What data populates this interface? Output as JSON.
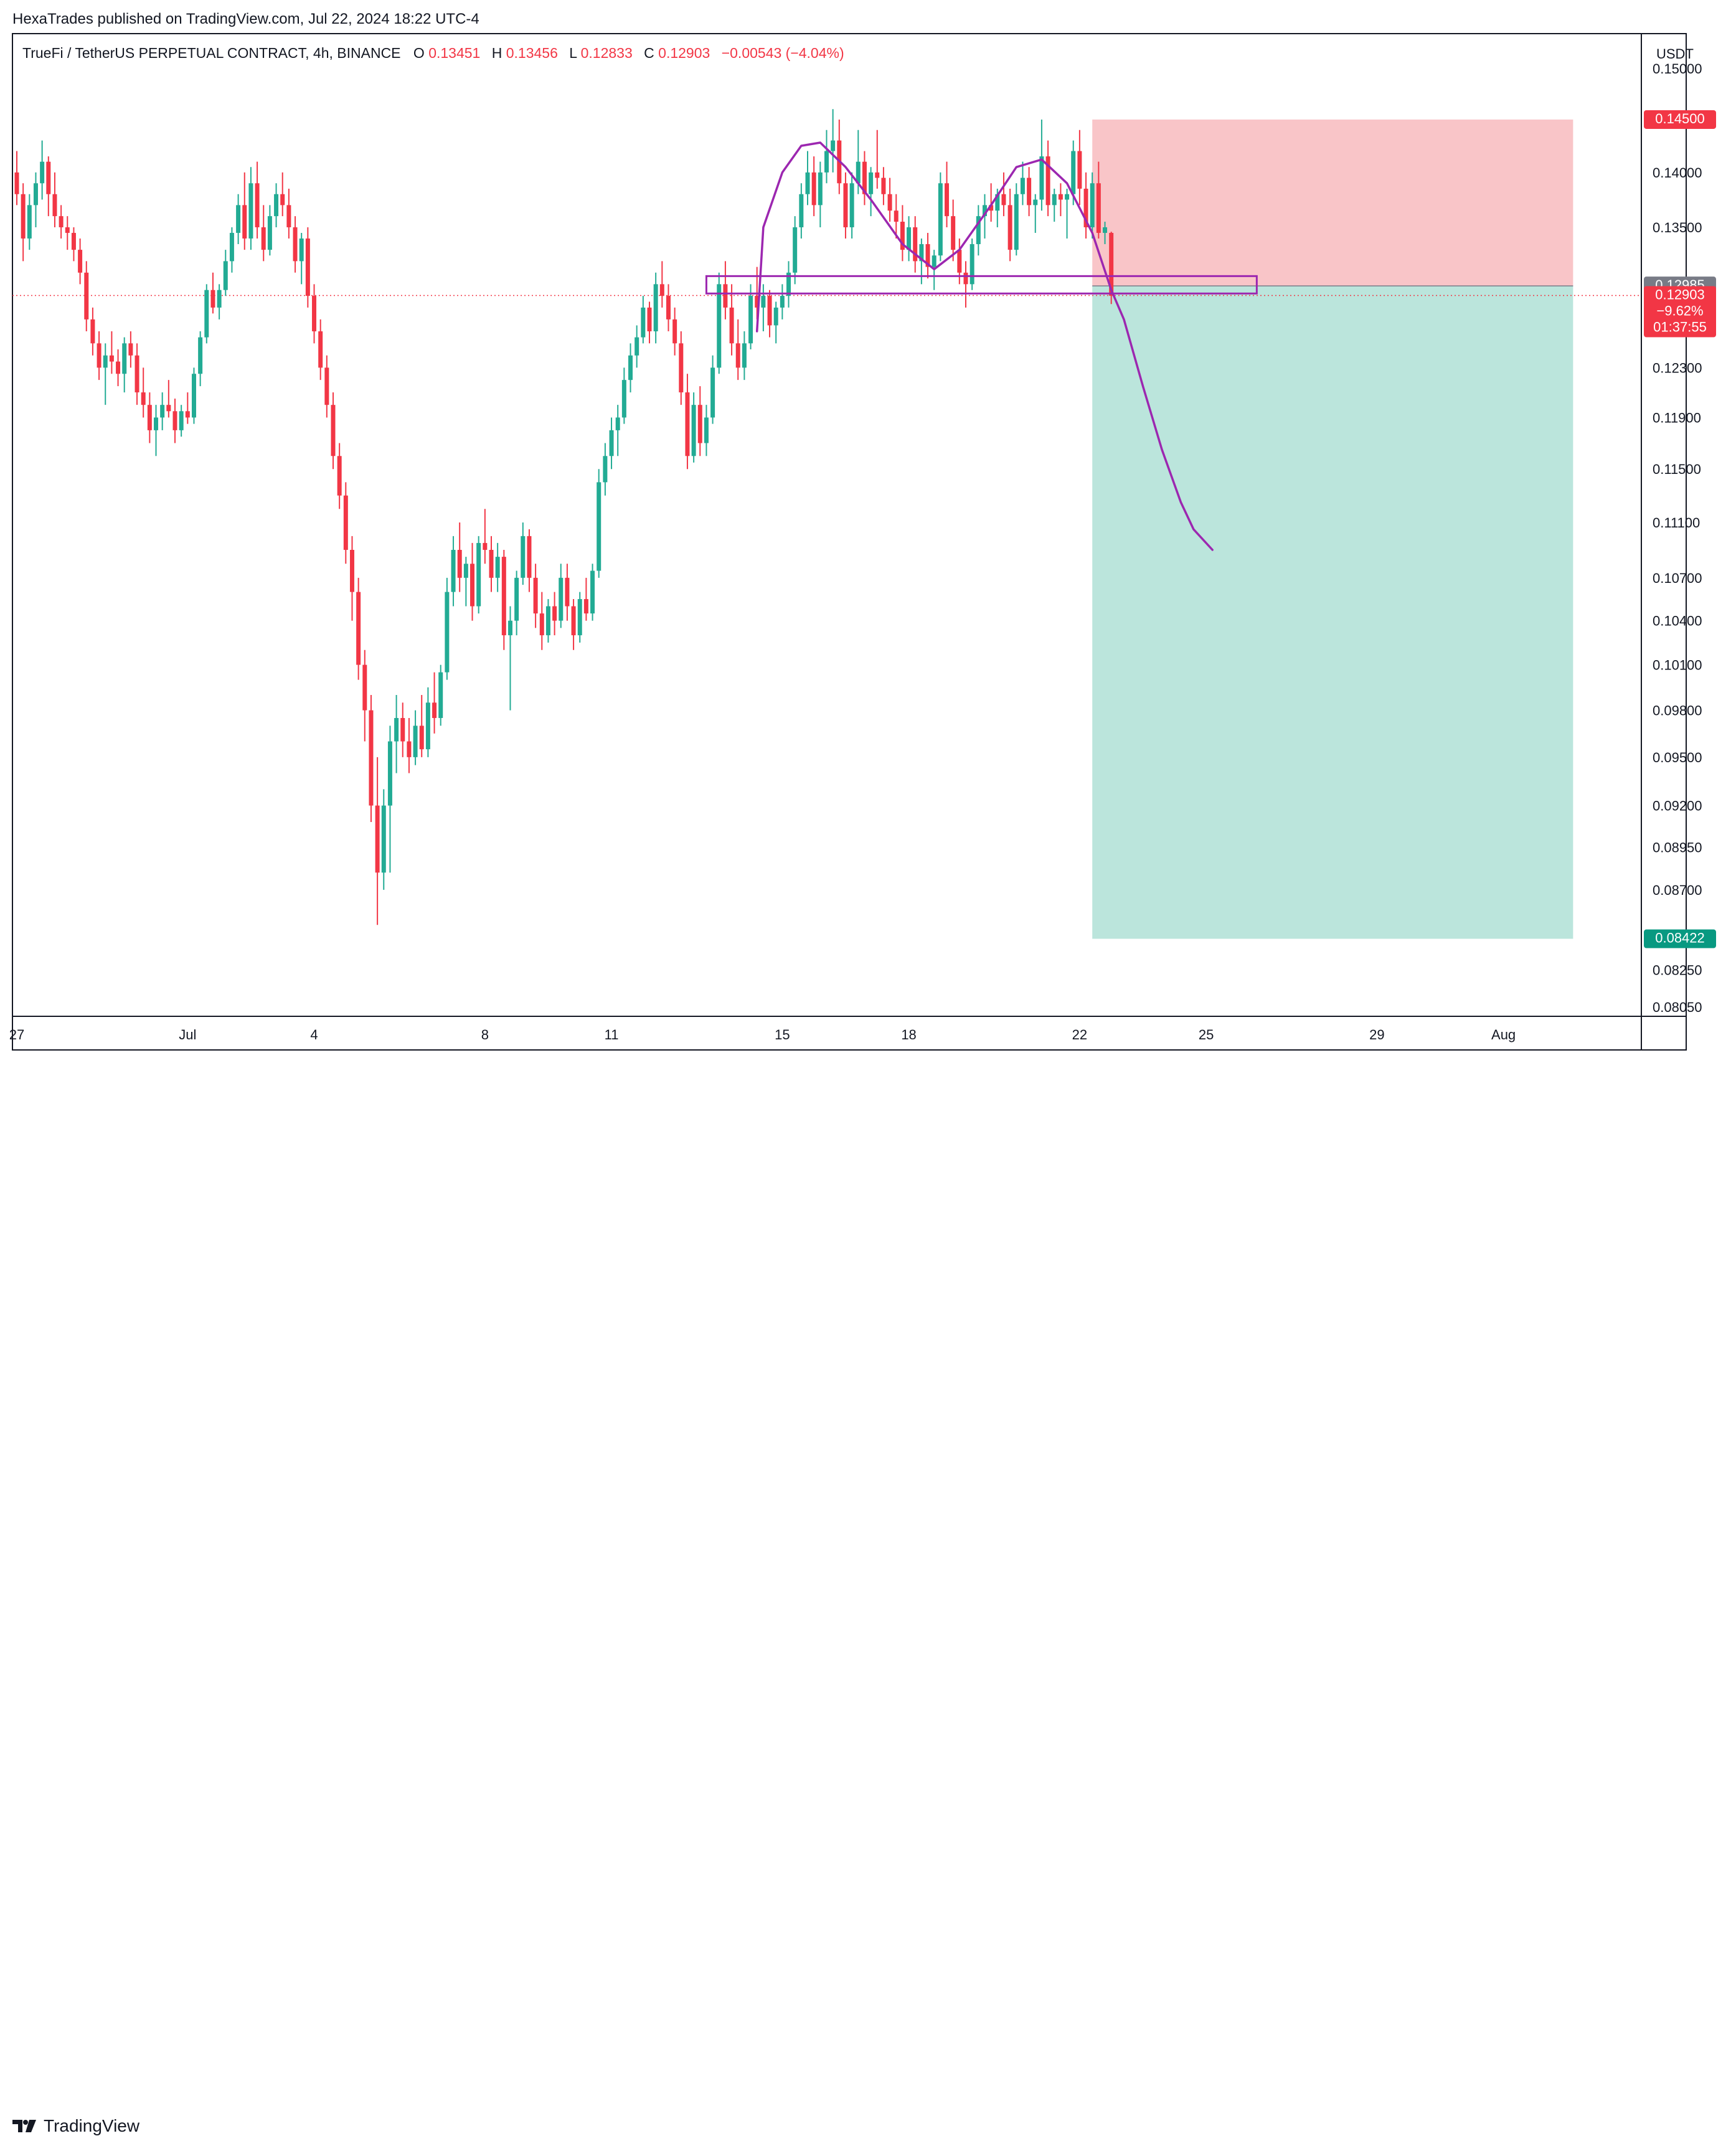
{
  "publish_line": "HexaTrades published on TradingView.com, Jul 22, 2024 18:22 UTC-4",
  "brand": "TradingView",
  "colors": {
    "up": "#22ab94",
    "down": "#f23645",
    "stop_zone": "#f9c5c8",
    "target_zone": "#bbe5dc",
    "drawing": "#9c27b0",
    "frame": "#131722"
  },
  "chart_data": {
    "type": "candlestick",
    "title": {
      "symbol": "TrueFi / TetherUS PERPETUAL CONTRACT, 4h, BINANCE",
      "o_label": "O",
      "o_value": "0.13451",
      "h_label": "H",
      "h_value": "0.13456",
      "l_label": "L",
      "l_value": "0.12833",
      "c_label": "C",
      "c_value": "0.12903",
      "change": "−0.00543 (−4.04%)"
    },
    "currency": "USDT",
    "y_scale": "log",
    "ylim": [
      0.08,
      0.1535
    ],
    "y_ticks": [
      "0.15000",
      "0.14000",
      "0.13500",
      "0.12300",
      "0.11900",
      "0.11500",
      "0.11100",
      "0.10700",
      "0.10400",
      "0.10100",
      "0.09800",
      "0.09500",
      "0.09200",
      "0.08950",
      "0.08700",
      "0.08250",
      "0.08050"
    ],
    "x_ticks": [
      "27",
      "Jul",
      "4",
      "8",
      "11",
      "15",
      "18",
      "22",
      "25",
      "29",
      "Aug"
    ],
    "x_tick_bars": [
      0,
      27,
      47,
      74,
      94,
      121,
      141,
      168,
      188,
      215,
      235
    ],
    "bars_total": 255,
    "price_labels": {
      "stop": "0.14500",
      "entry": "0.12985",
      "last_price": "0.12903",
      "last_change": "−9.62%",
      "countdown": "01:37:55",
      "target": "0.08422"
    },
    "short_position": {
      "start_bar": 170,
      "end_bar": 246,
      "entry": 0.12985,
      "stop": 0.145,
      "target": 0.08422
    },
    "zone_box": {
      "start_bar": 109,
      "end_bar": 196,
      "top": 0.1307,
      "bottom": 0.1292
    },
    "current_price": 0.12903,
    "drawing_path": [
      [
        117,
        0.126
      ],
      [
        118,
        0.135
      ],
      [
        121,
        0.14
      ],
      [
        124,
        0.1425
      ],
      [
        127,
        0.1428
      ],
      [
        131,
        0.1405
      ],
      [
        135,
        0.1375
      ],
      [
        140,
        0.1335
      ],
      [
        145,
        0.1313
      ],
      [
        149,
        0.133
      ],
      [
        154,
        0.137
      ],
      [
        158,
        0.1405
      ],
      [
        162,
        0.1412
      ],
      [
        166,
        0.139
      ],
      [
        170,
        0.1345
      ],
      [
        173,
        0.1295
      ],
      [
        175,
        0.127
      ],
      [
        178,
        0.1215
      ],
      [
        181,
        0.1165
      ],
      [
        184,
        0.1125
      ],
      [
        186,
        0.1105
      ],
      [
        189,
        0.109
      ]
    ],
    "candles": [
      [
        0.14,
        0.142,
        0.137,
        0.138
      ],
      [
        0.138,
        0.139,
        0.132,
        0.134
      ],
      [
        0.134,
        0.138,
        0.133,
        0.137
      ],
      [
        0.137,
        0.14,
        0.135,
        0.139
      ],
      [
        0.139,
        0.143,
        0.1375,
        0.141
      ],
      [
        0.141,
        0.1415,
        0.136,
        0.138
      ],
      [
        0.138,
        0.14,
        0.135,
        0.136
      ],
      [
        0.136,
        0.137,
        0.134,
        0.135
      ],
      [
        0.135,
        0.136,
        0.133,
        0.1345
      ],
      [
        0.1345,
        0.135,
        0.132,
        0.133
      ],
      [
        0.133,
        0.134,
        0.13,
        0.131
      ],
      [
        0.131,
        0.132,
        0.126,
        0.127
      ],
      [
        0.127,
        0.128,
        0.124,
        0.125
      ],
      [
        0.125,
        0.126,
        0.122,
        0.123
      ],
      [
        0.123,
        0.125,
        0.12,
        0.124
      ],
      [
        0.124,
        0.126,
        0.1225,
        0.1235
      ],
      [
        0.1235,
        0.1245,
        0.1215,
        0.1225
      ],
      [
        0.1225,
        0.1255,
        0.121,
        0.125
      ],
      [
        0.125,
        0.126,
        0.123,
        0.124
      ],
      [
        0.124,
        0.125,
        0.12,
        0.121
      ],
      [
        0.121,
        0.123,
        0.119,
        0.12
      ],
      [
        0.12,
        0.121,
        0.117,
        0.118
      ],
      [
        0.118,
        0.12,
        0.116,
        0.119
      ],
      [
        0.119,
        0.121,
        0.118,
        0.12
      ],
      [
        0.12,
        0.122,
        0.119,
        0.1195
      ],
      [
        0.1195,
        0.1205,
        0.117,
        0.118
      ],
      [
        0.118,
        0.12,
        0.1175,
        0.1195
      ],
      [
        0.1195,
        0.121,
        0.1185,
        0.119
      ],
      [
        0.119,
        0.123,
        0.1185,
        0.1225
      ],
      [
        0.1225,
        0.126,
        0.1215,
        0.1255
      ],
      [
        0.1255,
        0.13,
        0.125,
        0.1295
      ],
      [
        0.1295,
        0.131,
        0.1275,
        0.128
      ],
      [
        0.128,
        0.13,
        0.127,
        0.1295
      ],
      [
        0.1295,
        0.133,
        0.129,
        0.132
      ],
      [
        0.132,
        0.135,
        0.131,
        0.1345
      ],
      [
        0.1345,
        0.138,
        0.1335,
        0.137
      ],
      [
        0.137,
        0.14,
        0.133,
        0.134
      ],
      [
        0.134,
        0.1405,
        0.133,
        0.139
      ],
      [
        0.139,
        0.141,
        0.134,
        0.135
      ],
      [
        0.135,
        0.137,
        0.132,
        0.133
      ],
      [
        0.133,
        0.137,
        0.1325,
        0.136
      ],
      [
        0.136,
        0.139,
        0.135,
        0.138
      ],
      [
        0.138,
        0.14,
        0.136,
        0.137
      ],
      [
        0.137,
        0.1385,
        0.134,
        0.135
      ],
      [
        0.135,
        0.136,
        0.131,
        0.132
      ],
      [
        0.132,
        0.1345,
        0.13,
        0.134
      ],
      [
        0.134,
        0.135,
        0.128,
        0.129
      ],
      [
        0.129,
        0.13,
        0.125,
        0.126
      ],
      [
        0.126,
        0.127,
        0.122,
        0.123
      ],
      [
        0.123,
        0.124,
        0.119,
        0.12
      ],
      [
        0.12,
        0.121,
        0.115,
        0.116
      ],
      [
        0.116,
        0.117,
        0.112,
        0.113
      ],
      [
        0.113,
        0.114,
        0.108,
        0.109
      ],
      [
        0.109,
        0.11,
        0.104,
        0.106
      ],
      [
        0.106,
        0.107,
        0.1,
        0.101
      ],
      [
        0.101,
        0.102,
        0.096,
        0.098
      ],
      [
        0.098,
        0.099,
        0.091,
        0.092
      ],
      [
        0.092,
        0.095,
        0.085,
        0.088
      ],
      [
        0.088,
        0.093,
        0.087,
        0.092
      ],
      [
        0.092,
        0.097,
        0.088,
        0.096
      ],
      [
        0.096,
        0.099,
        0.094,
        0.0975
      ],
      [
        0.0975,
        0.0985,
        0.095,
        0.096
      ],
      [
        0.096,
        0.0975,
        0.094,
        0.095
      ],
      [
        0.095,
        0.098,
        0.0945,
        0.097
      ],
      [
        0.097,
        0.099,
        0.095,
        0.0955
      ],
      [
        0.0955,
        0.0995,
        0.095,
        0.0985
      ],
      [
        0.0985,
        0.1005,
        0.0965,
        0.0975
      ],
      [
        0.0975,
        0.101,
        0.097,
        0.1005
      ],
      [
        0.1005,
        0.107,
        0.1,
        0.106
      ],
      [
        0.106,
        0.11,
        0.105,
        0.109
      ],
      [
        0.109,
        0.111,
        0.106,
        0.107
      ],
      [
        0.107,
        0.1085,
        0.105,
        0.108
      ],
      [
        0.108,
        0.1095,
        0.104,
        0.105
      ],
      [
        0.105,
        0.11,
        0.1045,
        0.1095
      ],
      [
        0.1095,
        0.112,
        0.108,
        0.109
      ],
      [
        0.109,
        0.11,
        0.106,
        0.107
      ],
      [
        0.107,
        0.1095,
        0.106,
        0.1085
      ],
      [
        0.1085,
        0.109,
        0.102,
        0.103
      ],
      [
        0.103,
        0.105,
        0.098,
        0.104
      ],
      [
        0.104,
        0.1075,
        0.103,
        0.107
      ],
      [
        0.107,
        0.111,
        0.1065,
        0.11
      ],
      [
        0.11,
        0.1105,
        0.106,
        0.107
      ],
      [
        0.107,
        0.108,
        0.1035,
        0.1045
      ],
      [
        0.1045,
        0.106,
        0.102,
        0.103
      ],
      [
        0.103,
        0.1055,
        0.1025,
        0.105
      ],
      [
        0.105,
        0.106,
        0.103,
        0.104
      ],
      [
        0.104,
        0.108,
        0.1035,
        0.107
      ],
      [
        0.107,
        0.108,
        0.104,
        0.105
      ],
      [
        0.105,
        0.1055,
        0.102,
        0.103
      ],
      [
        0.103,
        0.106,
        0.1025,
        0.1055
      ],
      [
        0.1055,
        0.107,
        0.104,
        0.1045
      ],
      [
        0.1045,
        0.108,
        0.104,
        0.1075
      ],
      [
        0.1075,
        0.115,
        0.107,
        0.114
      ],
      [
        0.114,
        0.117,
        0.113,
        0.116
      ],
      [
        0.116,
        0.119,
        0.115,
        0.118
      ],
      [
        0.118,
        0.12,
        0.116,
        0.119
      ],
      [
        0.119,
        0.123,
        0.1185,
        0.122
      ],
      [
        0.122,
        0.125,
        0.121,
        0.124
      ],
      [
        0.124,
        0.1265,
        0.123,
        0.1255
      ],
      [
        0.1255,
        0.129,
        0.125,
        0.128
      ],
      [
        0.128,
        0.1285,
        0.125,
        0.126
      ],
      [
        0.126,
        0.131,
        0.125,
        0.13
      ],
      [
        0.13,
        0.132,
        0.128,
        0.129
      ],
      [
        0.129,
        0.13,
        0.126,
        0.127
      ],
      [
        0.127,
        0.128,
        0.124,
        0.125
      ],
      [
        0.125,
        0.126,
        0.12,
        0.121
      ],
      [
        0.121,
        0.1225,
        0.115,
        0.116
      ],
      [
        0.116,
        0.121,
        0.1155,
        0.12
      ],
      [
        0.12,
        0.1215,
        0.116,
        0.117
      ],
      [
        0.117,
        0.12,
        0.116,
        0.119
      ],
      [
        0.119,
        0.124,
        0.1185,
        0.123
      ],
      [
        0.123,
        0.131,
        0.1225,
        0.13
      ],
      [
        0.13,
        0.132,
        0.127,
        0.128
      ],
      [
        0.128,
        0.13,
        0.124,
        0.125
      ],
      [
        0.125,
        0.127,
        0.122,
        0.123
      ],
      [
        0.123,
        0.126,
        0.122,
        0.125
      ],
      [
        0.125,
        0.13,
        0.1245,
        0.129
      ],
      [
        0.129,
        0.1315,
        0.127,
        0.128
      ],
      [
        0.128,
        0.13,
        0.126,
        0.129
      ],
      [
        0.129,
        0.1295,
        0.1255,
        0.1265
      ],
      [
        0.1265,
        0.1285,
        0.125,
        0.128
      ],
      [
        0.128,
        0.13,
        0.127,
        0.129
      ],
      [
        0.129,
        0.132,
        0.128,
        0.131
      ],
      [
        0.131,
        0.136,
        0.13,
        0.135
      ],
      [
        0.135,
        0.139,
        0.134,
        0.138
      ],
      [
        0.138,
        0.142,
        0.137,
        0.14
      ],
      [
        0.14,
        0.1415,
        0.136,
        0.137
      ],
      [
        0.137,
        0.141,
        0.135,
        0.14
      ],
      [
        0.14,
        0.144,
        0.139,
        0.142
      ],
      [
        0.142,
        0.146,
        0.14,
        0.143
      ],
      [
        0.143,
        0.145,
        0.138,
        0.139
      ],
      [
        0.139,
        0.14,
        0.134,
        0.135
      ],
      [
        0.135,
        0.14,
        0.134,
        0.139
      ],
      [
        0.139,
        0.144,
        0.138,
        0.141
      ],
      [
        0.141,
        0.142,
        0.137,
        0.138
      ],
      [
        0.138,
        0.1405,
        0.136,
        0.14
      ],
      [
        0.14,
        0.144,
        0.1385,
        0.1395
      ],
      [
        0.1395,
        0.1405,
        0.137,
        0.138
      ],
      [
        0.138,
        0.1395,
        0.1355,
        0.1365
      ],
      [
        0.1365,
        0.138,
        0.134,
        0.1355
      ],
      [
        0.1355,
        0.137,
        0.132,
        0.133
      ],
      [
        0.133,
        0.136,
        0.132,
        0.135
      ],
      [
        0.135,
        0.136,
        0.131,
        0.132
      ],
      [
        0.132,
        0.134,
        0.13,
        0.1335
      ],
      [
        0.1335,
        0.1345,
        0.1305,
        0.1315
      ],
      [
        0.1315,
        0.133,
        0.1295,
        0.1325
      ],
      [
        0.1325,
        0.14,
        0.132,
        0.139
      ],
      [
        0.139,
        0.141,
        0.135,
        0.136
      ],
      [
        0.136,
        0.1375,
        0.132,
        0.133
      ],
      [
        0.133,
        0.134,
        0.13,
        0.131
      ],
      [
        0.131,
        0.132,
        0.128,
        0.13
      ],
      [
        0.13,
        0.134,
        0.1295,
        0.1335
      ],
      [
        0.1335,
        0.137,
        0.1325,
        0.136
      ],
      [
        0.136,
        0.138,
        0.134,
        0.137
      ],
      [
        0.137,
        0.139,
        0.1355,
        0.1365
      ],
      [
        0.1365,
        0.1385,
        0.135,
        0.138
      ],
      [
        0.138,
        0.14,
        0.136,
        0.137
      ],
      [
        0.137,
        0.1385,
        0.132,
        0.133
      ],
      [
        0.133,
        0.139,
        0.1325,
        0.138
      ],
      [
        0.138,
        0.141,
        0.137,
        0.1395
      ],
      [
        0.1395,
        0.1405,
        0.136,
        0.137
      ],
      [
        0.137,
        0.138,
        0.1345,
        0.1375
      ],
      [
        0.1375,
        0.145,
        0.1365,
        0.1415
      ],
      [
        0.1415,
        0.143,
        0.136,
        0.137
      ],
      [
        0.137,
        0.1385,
        0.1355,
        0.138
      ],
      [
        0.138,
        0.139,
        0.136,
        0.1375
      ],
      [
        0.1375,
        0.1385,
        0.134,
        0.138
      ],
      [
        0.138,
        0.143,
        0.137,
        0.142
      ],
      [
        0.142,
        0.144,
        0.137,
        0.1385
      ],
      [
        0.1385,
        0.14,
        0.134,
        0.135
      ],
      [
        0.135,
        0.14,
        0.134,
        0.139
      ],
      [
        0.139,
        0.141,
        0.134,
        0.1345
      ],
      [
        0.1345,
        0.1355,
        0.1335,
        0.135
      ],
      [
        0.1345,
        0.1346,
        0.1283,
        0.129
      ]
    ]
  }
}
